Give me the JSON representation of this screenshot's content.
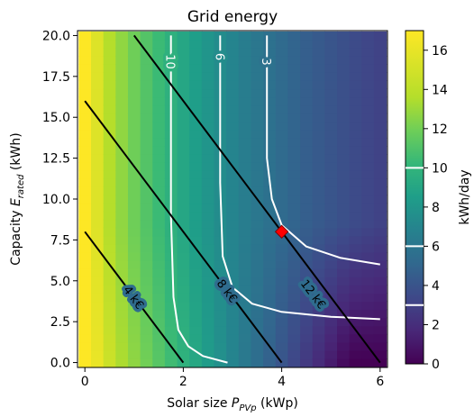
{
  "chart_data": {
    "type": "heatmap",
    "title": "Grid energy",
    "xlabel": {
      "text": "Solar size ",
      "symbol": "P",
      "subscript": "PVp",
      "unit": " (kWp)"
    },
    "ylabel": {
      "text": "Capacity ",
      "symbol": "E",
      "subscript": "rated",
      "unit": " (kWh)"
    },
    "xlim": [
      -0.15,
      6.15
    ],
    "ylim": [
      -0.3,
      20.3
    ],
    "x_ticks": [
      0,
      2,
      4,
      6
    ],
    "x_tick_labels": [
      "0",
      "2",
      "4",
      "6"
    ],
    "y_ticks": [
      0.0,
      2.5,
      5.0,
      7.5,
      10.0,
      12.5,
      15.0,
      17.5,
      20.0
    ],
    "y_tick_labels": [
      "0.0",
      "2.5",
      "5.0",
      "7.5",
      "10.0",
      "12.5",
      "15.0",
      "17.5",
      "20.0"
    ],
    "colormap": "viridis",
    "colorbar": {
      "label": "kWh/day",
      "range": [
        0,
        17
      ],
      "ticks": [
        0,
        2,
        4,
        6,
        8,
        10,
        12,
        14,
        16
      ],
      "tick_labels": [
        "0",
        "2",
        "4",
        "6",
        "8",
        "10",
        "12",
        "14",
        "16"
      ],
      "contour_marks": [
        3,
        6,
        10
      ]
    },
    "white_contours": [
      {
        "label": "10",
        "level": 10,
        "points": [
          [
            1.75,
            20.0
          ],
          [
            1.75,
            9.0
          ],
          [
            1.8,
            4.0
          ],
          [
            1.9,
            2.0
          ],
          [
            2.1,
            1.0
          ],
          [
            2.4,
            0.4
          ],
          [
            2.9,
            0.0
          ]
        ]
      },
      {
        "label": "6",
        "level": 6,
        "points": [
          [
            2.75,
            20.0
          ],
          [
            2.75,
            11.0
          ],
          [
            2.8,
            6.5
          ],
          [
            3.0,
            4.6
          ],
          [
            3.4,
            3.6
          ],
          [
            4.0,
            3.1
          ],
          [
            5.0,
            2.8
          ],
          [
            6.0,
            2.65
          ]
        ]
      },
      {
        "label": "3",
        "level": 3,
        "points": [
          [
            3.7,
            20.0
          ],
          [
            3.7,
            12.5
          ],
          [
            3.8,
            10.0
          ],
          [
            4.0,
            8.4
          ],
          [
            4.5,
            7.1
          ],
          [
            5.2,
            6.4
          ],
          [
            6.0,
            6.0
          ]
        ]
      }
    ],
    "black_lines": [
      {
        "label": "4 k€",
        "points": [
          [
            0,
            8
          ],
          [
            2,
            0
          ]
        ]
      },
      {
        "label": "8 k€",
        "points": [
          [
            0,
            16
          ],
          [
            4,
            0
          ]
        ]
      },
      {
        "label": "12 k€",
        "points": [
          [
            1,
            20
          ],
          [
            6,
            0
          ]
        ]
      }
    ],
    "marker": {
      "x": 4,
      "y": 8,
      "shape": "diamond",
      "color": "#ff0000"
    }
  }
}
